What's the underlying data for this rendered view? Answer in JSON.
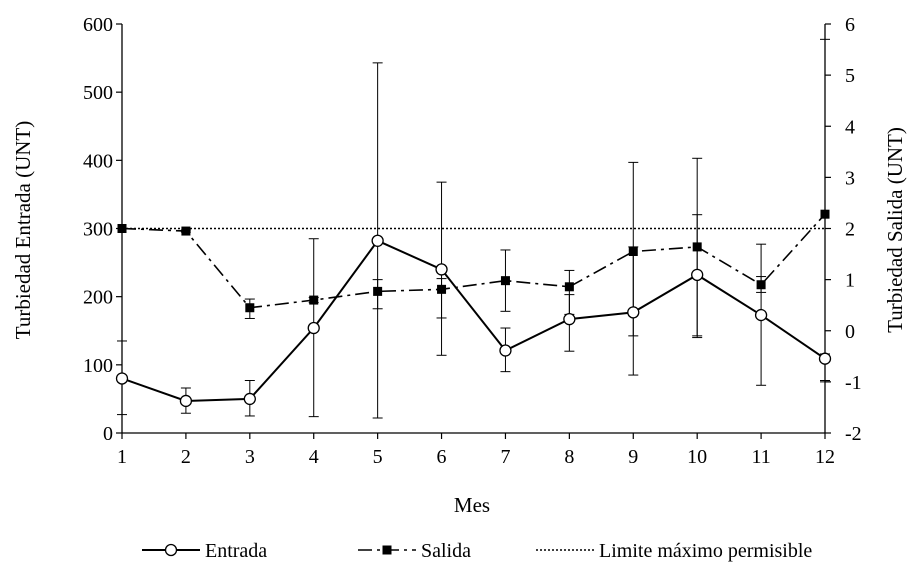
{
  "chart_data": {
    "type": "line",
    "xlabel": "Mes",
    "ylabel_left": "Turbiedad Entrada (UNT)",
    "ylabel_right": "Turbiedad Salida (UNT)",
    "x": [
      1,
      2,
      3,
      4,
      5,
      6,
      7,
      8,
      9,
      10,
      11,
      12
    ],
    "ylim_left": [
      0,
      600
    ],
    "ylim_right": [
      -2,
      6
    ],
    "yticks_left": [
      0,
      100,
      200,
      300,
      400,
      500,
      600
    ],
    "yticks_right": [
      -2,
      -1,
      0,
      1,
      2,
      3,
      4,
      5,
      6
    ],
    "series": [
      {
        "name": "Entrada",
        "axis": "left",
        "style": "solid-open-circle",
        "values": [
          80,
          47,
          50,
          154,
          282,
          240,
          121,
          167,
          177,
          232,
          173,
          109
        ],
        "err_low": [
          27,
          29,
          25,
          24,
          22,
          114,
          90,
          120,
          85,
          140,
          70,
          77
        ],
        "err_high": [
          135,
          66,
          77,
          285,
          543,
          368,
          154,
          203,
          397,
          403,
          277,
          116
        ]
      },
      {
        "name": "Salida",
        "axis": "right",
        "style": "dashed-filled-square",
        "values": [
          2.0,
          1.95,
          0.45,
          0.6,
          0.77,
          0.81,
          0.98,
          0.86,
          1.55,
          1.64,
          0.9,
          2.28
        ],
        "err_low": [
          2.0,
          1.93,
          0.24,
          0.55,
          0.43,
          0.25,
          0.38,
          0.32,
          -0.1,
          -0.1,
          0.75,
          -1.0
        ],
        "err_high": [
          2.0,
          1.97,
          0.62,
          0.65,
          1.0,
          1.02,
          1.58,
          1.18,
          1.64,
          2.27,
          1.06,
          5.7
        ]
      },
      {
        "name": "Limite máximo permisible",
        "axis": "right",
        "style": "dotted",
        "values": [
          2,
          2,
          2,
          2,
          2,
          2,
          2,
          2,
          2,
          2,
          2,
          2
        ]
      }
    ],
    "grid": false,
    "legend_position": "bottom"
  }
}
